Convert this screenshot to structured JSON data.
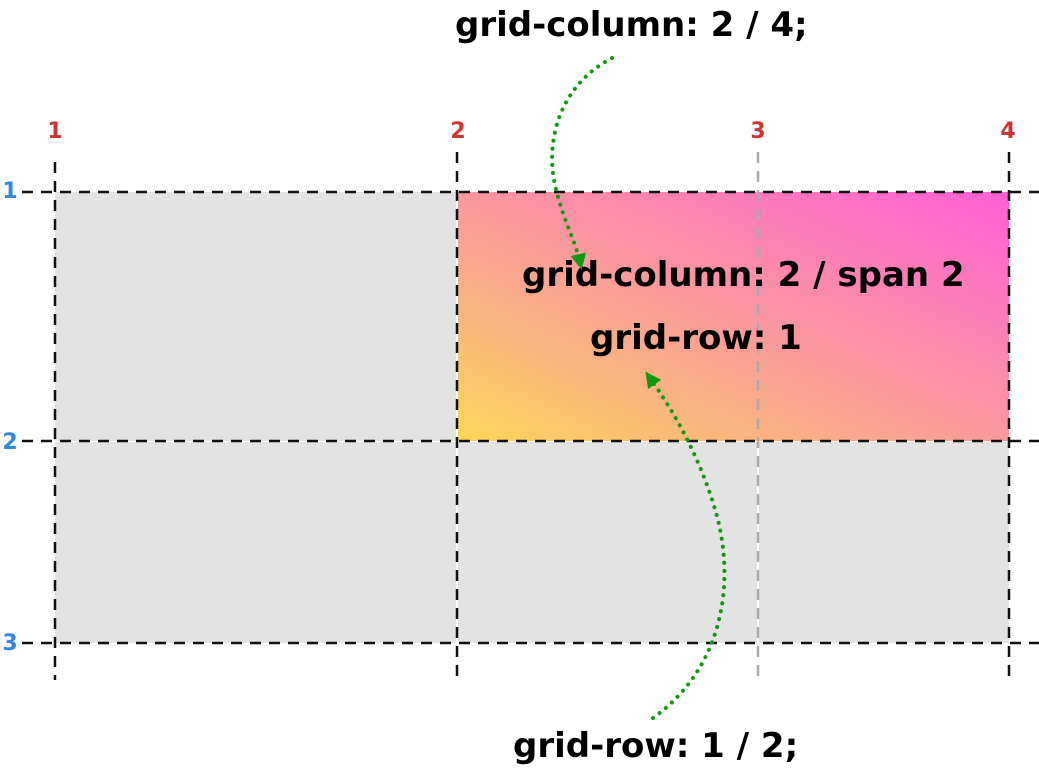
{
  "top_annotation": "grid-column: 2 / 4;",
  "bottom_annotation": "grid-row: 1 / 2;",
  "item": {
    "line1": "grid-column: 2 / span 2",
    "line2": "grid-row: 1"
  },
  "column_line_numbers": [
    "1",
    "2",
    "3",
    "4"
  ],
  "row_line_numbers": [
    "1",
    "2",
    "3"
  ],
  "colors": {
    "cell": "#e3e3e3",
    "column_number": "#cc3333",
    "row_number": "#3388dd",
    "arrow": "#119911",
    "gradient_start": "#fbd65a",
    "gradient_mid": "#fa9e98",
    "gradient_end": "#ff5fd6"
  }
}
